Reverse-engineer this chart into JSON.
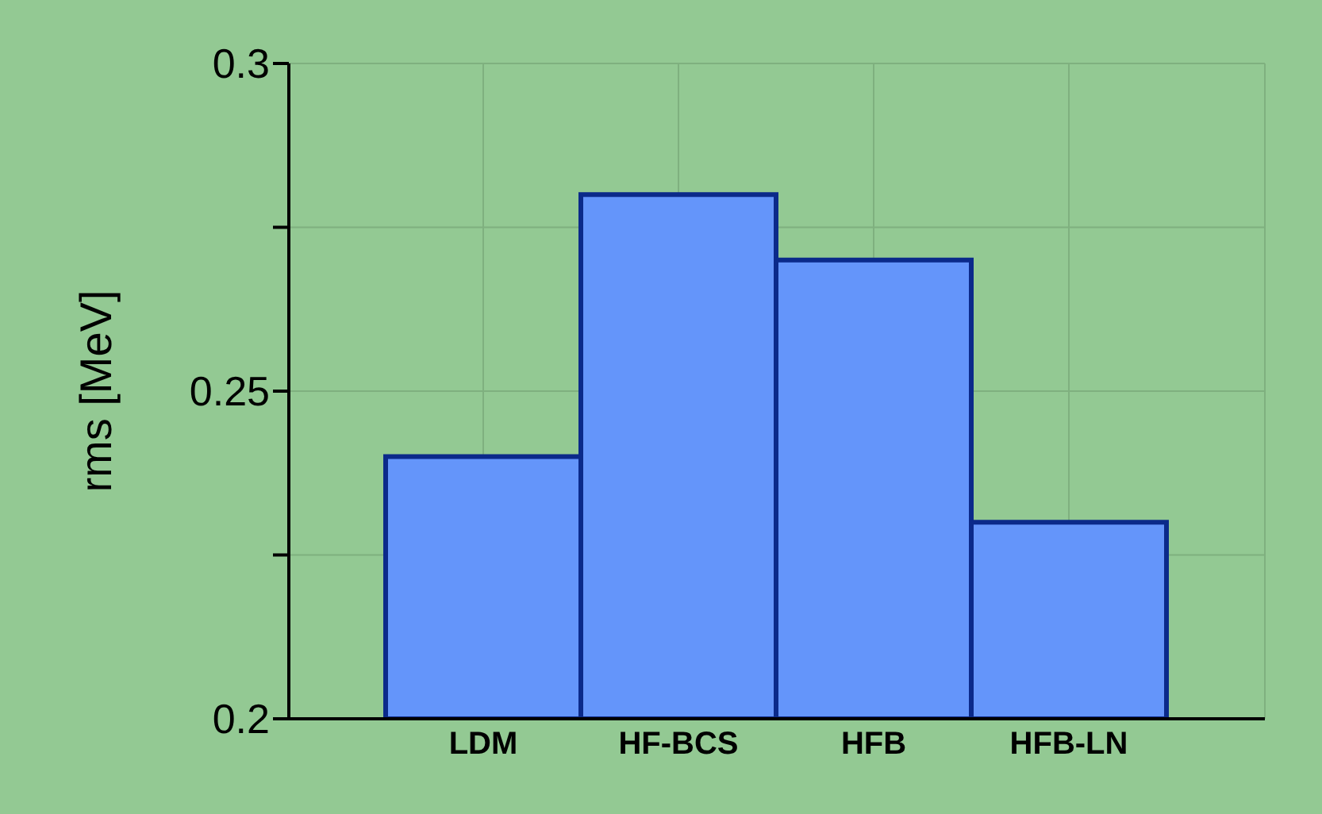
{
  "chart_data": {
    "type": "bar",
    "ylabel": "rms  [MeV]",
    "categories": [
      "LDM",
      "HF-BCS",
      "HFB",
      "HFB-LN"
    ],
    "values": [
      0.24,
      0.28,
      0.27,
      0.23
    ],
    "color": "#6495fa",
    "ylim": [
      0.2,
      0.3
    ],
    "yticks": [
      0.2,
      {
        "value": 0.225,
        "label": null
      },
      0.25,
      {
        "value": 0.275,
        "label": null
      },
      0.3
    ],
    "grid": true
  }
}
